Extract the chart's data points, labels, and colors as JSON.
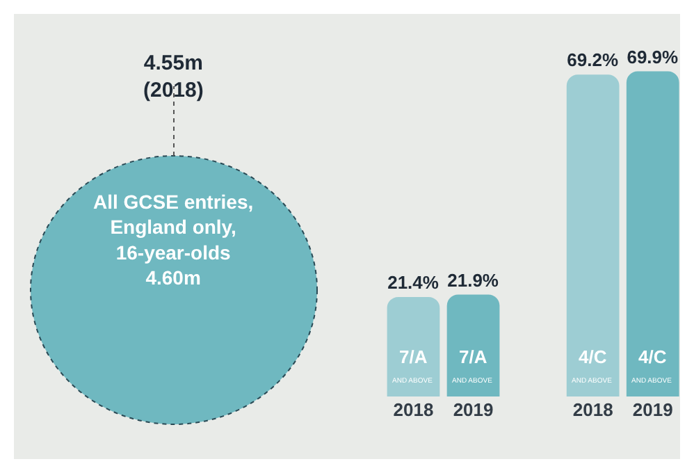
{
  "chart_data": {
    "type": "bar",
    "categories": [
      "2018",
      "2019",
      "2018",
      "2019"
    ],
    "values": [
      21.4,
      21.9,
      69.2,
      69.9
    ],
    "colors": [
      "#9dcdd3",
      "#6fb8c0",
      "#9dcdd3",
      "#6fb8c0"
    ],
    "value_labels": [
      "21.4%",
      "21.9%",
      "69.2%",
      "69.9%"
    ],
    "grid": false,
    "annotations": [
      "4.55m\n(2018)",
      "All GCSE entries,\nEngland only,\n16-year-olds\n4.60m",
      "7/A",
      "AND ABOVE",
      "7/A",
      "AND ABOVE",
      "4/C",
      "AND ABOVE",
      "4/C",
      "AND ABOVE"
    ]
  }
}
